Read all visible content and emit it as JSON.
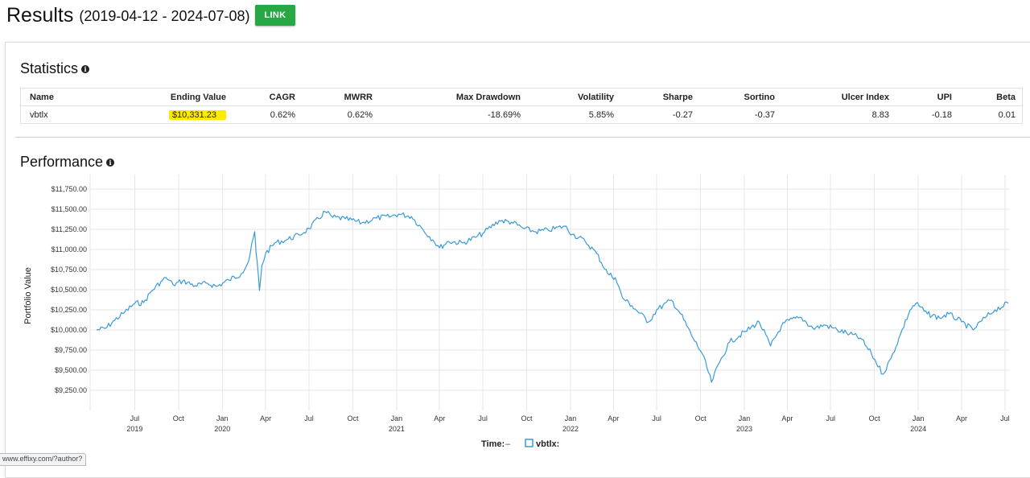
{
  "header": {
    "title": "Results",
    "date_range": "(2019-04-12 - 2024-07-08)",
    "link_label": "LINK"
  },
  "statistics": {
    "title": "Statistics",
    "info_icon": "info-icon",
    "columns": [
      "Name",
      "Ending Value",
      "CAGR",
      "MWRR",
      "Max Drawdown",
      "Volatility",
      "Sharpe",
      "Sortino",
      "Ulcer Index",
      "UPI",
      "Beta"
    ],
    "rows": [
      [
        "vbtlx",
        "$10,331.23",
        "0.62%",
        "0.62%",
        "-18.69%",
        "5.85%",
        "-0.27",
        "-0.37",
        "8.83",
        "-0.18",
        "0.01"
      ]
    ],
    "highlight_color": "#ffeb00"
  },
  "performance": {
    "title": "Performance",
    "info_icon": "info-icon"
  },
  "status_bar": {
    "text": "www.effixy.com/?author?"
  },
  "chart_data": {
    "type": "line",
    "ylabel": "Portfolio Value",
    "ylim": [
      9100,
      11850
    ],
    "y_ticks": [
      {
        "value": 9250,
        "label": "$9,250.00"
      },
      {
        "value": 9500,
        "label": "$9,500.00"
      },
      {
        "value": 9750,
        "label": "$9,750.00"
      },
      {
        "value": 10000,
        "label": "$10,000.00"
      },
      {
        "value": 10250,
        "label": "$10,250.00"
      },
      {
        "value": 10500,
        "label": "$10,500.00"
      },
      {
        "value": 10750,
        "label": "$10,750.00"
      },
      {
        "value": 11000,
        "label": "$11,000.00"
      },
      {
        "value": 11250,
        "label": "$11,250.00"
      },
      {
        "value": 11500,
        "label": "$11,500.00"
      },
      {
        "value": 11750,
        "label": "$11,750.00"
      }
    ],
    "xlim": [
      "2019-04-12",
      "2024-07-08"
    ],
    "x_ticks": [
      {
        "date": "2019-07-01",
        "label": "Jul",
        "year": "2019"
      },
      {
        "date": "2019-10-01",
        "label": "Oct"
      },
      {
        "date": "2020-01-01",
        "label": "Jan",
        "year": "2020"
      },
      {
        "date": "2020-04-01",
        "label": "Apr"
      },
      {
        "date": "2020-07-01",
        "label": "Jul"
      },
      {
        "date": "2020-10-01",
        "label": "Oct"
      },
      {
        "date": "2021-01-01",
        "label": "Jan",
        "year": "2021"
      },
      {
        "date": "2021-04-01",
        "label": "Apr"
      },
      {
        "date": "2021-07-01",
        "label": "Jul"
      },
      {
        "date": "2021-10-01",
        "label": "Oct"
      },
      {
        "date": "2022-01-01",
        "label": "Jan",
        "year": "2022"
      },
      {
        "date": "2022-04-01",
        "label": "Apr"
      },
      {
        "date": "2022-07-01",
        "label": "Jul"
      },
      {
        "date": "2022-10-01",
        "label": "Oct"
      },
      {
        "date": "2023-01-01",
        "label": "Jan",
        "year": "2023"
      },
      {
        "date": "2023-04-01",
        "label": "Apr"
      },
      {
        "date": "2023-07-01",
        "label": "Jul"
      },
      {
        "date": "2023-10-01",
        "label": "Oct"
      },
      {
        "date": "2024-01-01",
        "label": "Jan",
        "year": "2024"
      },
      {
        "date": "2024-04-01",
        "label": "Apr"
      },
      {
        "date": "2024-07-01",
        "label": "Jul"
      }
    ],
    "grid": true,
    "legend": {
      "placement": "bottom-center",
      "time_label": "Time:",
      "time_value": "–"
    },
    "series": [
      {
        "name": "vbtlx:",
        "color": "#3a9ad9",
        "points": [
          [
            "2019-04-12",
            10000
          ],
          [
            "2019-05-01",
            10020
          ],
          [
            "2019-05-20",
            10120
          ],
          [
            "2019-06-10",
            10220
          ],
          [
            "2019-07-01",
            10330
          ],
          [
            "2019-07-20",
            10340
          ],
          [
            "2019-08-05",
            10480
          ],
          [
            "2019-08-25",
            10600
          ],
          [
            "2019-09-05",
            10650
          ],
          [
            "2019-09-20",
            10560
          ],
          [
            "2019-10-10",
            10610
          ],
          [
            "2019-11-05",
            10550
          ],
          [
            "2019-12-01",
            10580
          ],
          [
            "2019-12-20",
            10540
          ],
          [
            "2020-01-15",
            10620
          ],
          [
            "2020-02-10",
            10700
          ],
          [
            "2020-02-25",
            10850
          ],
          [
            "2020-03-09",
            11220
          ],
          [
            "2020-03-12",
            10950
          ],
          [
            "2020-03-16",
            10720
          ],
          [
            "2020-03-19",
            10490
          ],
          [
            "2020-03-24",
            10800
          ],
          [
            "2020-04-01",
            10950
          ],
          [
            "2020-04-20",
            11080
          ],
          [
            "2020-05-15",
            11120
          ],
          [
            "2020-06-10",
            11180
          ],
          [
            "2020-07-01",
            11260
          ],
          [
            "2020-08-04",
            11470
          ],
          [
            "2020-08-20",
            11400
          ],
          [
            "2020-09-15",
            11380
          ],
          [
            "2020-10-20",
            11330
          ],
          [
            "2020-11-20",
            11390
          ],
          [
            "2020-12-20",
            11410
          ],
          [
            "2021-01-05",
            11440
          ],
          [
            "2021-02-01",
            11410
          ],
          [
            "2021-02-25",
            11250
          ],
          [
            "2021-03-18",
            11120
          ],
          [
            "2021-04-01",
            11020
          ],
          [
            "2021-04-20",
            11100
          ],
          [
            "2021-05-20",
            11080
          ],
          [
            "2021-06-15",
            11150
          ],
          [
            "2021-07-01",
            11200
          ],
          [
            "2021-08-04",
            11360
          ],
          [
            "2021-08-30",
            11340
          ],
          [
            "2021-09-25",
            11260
          ],
          [
            "2021-10-20",
            11220
          ],
          [
            "2021-11-15",
            11240
          ],
          [
            "2021-12-20",
            11290
          ],
          [
            "2022-01-05",
            11190
          ],
          [
            "2022-02-01",
            11100
          ],
          [
            "2022-02-25",
            10950
          ],
          [
            "2022-03-20",
            10700
          ],
          [
            "2022-04-05",
            10650
          ],
          [
            "2022-04-20",
            10400
          ],
          [
            "2022-05-10",
            10300
          ],
          [
            "2022-06-14",
            10100
          ],
          [
            "2022-07-01",
            10250
          ],
          [
            "2022-08-01",
            10370
          ],
          [
            "2022-08-20",
            10200
          ],
          [
            "2022-09-15",
            9900
          ],
          [
            "2022-10-05",
            9700
          ],
          [
            "2022-10-24",
            9350
          ],
          [
            "2022-11-10",
            9600
          ],
          [
            "2022-12-01",
            9850
          ],
          [
            "2023-01-03",
            9980
          ],
          [
            "2023-02-01",
            10100
          ],
          [
            "2023-02-25",
            9800
          ],
          [
            "2023-03-20",
            10050
          ],
          [
            "2023-04-05",
            10120
          ],
          [
            "2023-05-01",
            10150
          ],
          [
            "2023-05-25",
            10020
          ],
          [
            "2023-06-20",
            10060
          ],
          [
            "2023-07-15",
            10000
          ],
          [
            "2023-08-10",
            9950
          ],
          [
            "2023-09-01",
            9900
          ],
          [
            "2023-09-25",
            9700
          ],
          [
            "2023-10-19",
            9450
          ],
          [
            "2023-11-05",
            9650
          ],
          [
            "2023-11-25",
            9950
          ],
          [
            "2023-12-15",
            10250
          ],
          [
            "2023-12-27",
            10330
          ],
          [
            "2024-01-20",
            10200
          ],
          [
            "2024-02-15",
            10150
          ],
          [
            "2024-03-05",
            10200
          ],
          [
            "2024-04-01",
            10100
          ],
          [
            "2024-04-25",
            10000
          ],
          [
            "2024-05-20",
            10150
          ],
          [
            "2024-06-10",
            10250
          ],
          [
            "2024-07-08",
            10331.23
          ]
        ]
      }
    ]
  }
}
